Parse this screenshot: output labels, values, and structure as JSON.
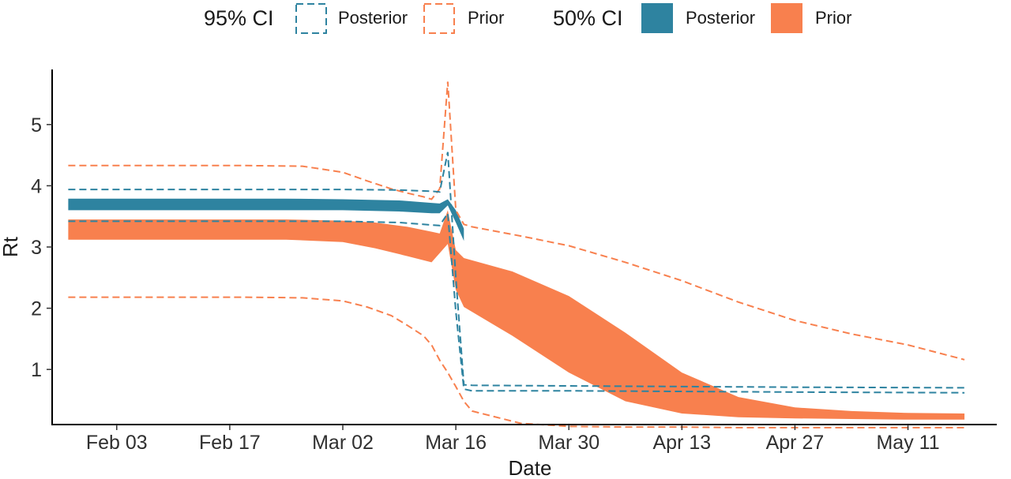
{
  "chart_data": {
    "type": "area",
    "xlabel": "Date",
    "ylabel": "Rt",
    "x_ticks": [
      "Feb 03",
      "Feb 17",
      "Mar 02",
      "Mar 16",
      "Mar 30",
      "Apr 13",
      "Apr 27",
      "May 11"
    ],
    "y_ticks": [
      1,
      2,
      3,
      4,
      5
    ],
    "xlim": [
      "2020-01-26",
      "2020-05-22"
    ],
    "ylim": [
      0.1,
      5.9
    ],
    "legend": {
      "position": "top",
      "groups": [
        {
          "title": "95% CI",
          "style": "dashed",
          "items": [
            "Posterior",
            "Prior"
          ]
        },
        {
          "title": "50% CI",
          "style": "filled",
          "items": [
            "Posterior",
            "Prior"
          ]
        }
      ]
    },
    "colors": {
      "posterior": "#2e83a0",
      "prior": "#f8804e"
    },
    "series": [
      {
        "name": "Prior",
        "interval": "95% CI",
        "style": "dashed",
        "x": [
          "2020-01-28",
          "2020-02-05",
          "2020-02-12",
          "2020-02-19",
          "2020-02-26",
          "2020-03-02",
          "2020-03-05",
          "2020-03-08",
          "2020-03-10",
          "2020-03-12",
          "2020-03-13",
          "2020-03-14",
          "2020-03-15",
          "2020-03-16",
          "2020-03-17",
          "2020-03-18",
          "2020-03-24",
          "2020-03-30",
          "2020-04-06",
          "2020-04-13",
          "2020-04-20",
          "2020-04-27",
          "2020-05-04",
          "2020-05-11",
          "2020-05-18"
        ],
        "lower": [
          2.18,
          2.18,
          2.18,
          2.18,
          2.17,
          2.12,
          2.02,
          1.88,
          1.72,
          1.55,
          1.4,
          1.15,
          0.95,
          0.72,
          0.48,
          0.32,
          0.12,
          0.07,
          0.06,
          0.06,
          0.05,
          0.05,
          0.05,
          0.05,
          0.05
        ],
        "upper": [
          4.33,
          4.33,
          4.33,
          4.33,
          4.32,
          4.22,
          4.08,
          3.95,
          3.88,
          3.82,
          3.78,
          3.95,
          5.7,
          3.6,
          3.37,
          3.33,
          3.18,
          3.02,
          2.75,
          2.45,
          2.1,
          1.8,
          1.58,
          1.4,
          1.16
        ]
      },
      {
        "name": "Posterior",
        "interval": "95% CI",
        "style": "dashed",
        "x": [
          "2020-01-28",
          "2020-02-10",
          "2020-02-24",
          "2020-03-02",
          "2020-03-09",
          "2020-03-13",
          "2020-03-14",
          "2020-03-15",
          "2020-03-16",
          "2020-03-17",
          "2020-03-18",
          "2020-03-31",
          "2020-04-14",
          "2020-04-28",
          "2020-05-18"
        ],
        "lower": [
          3.42,
          3.42,
          3.42,
          3.42,
          3.4,
          3.36,
          3.35,
          3.55,
          1.95,
          0.68,
          0.65,
          0.65,
          0.64,
          0.63,
          0.62
        ],
        "upper": [
          3.94,
          3.94,
          3.94,
          3.94,
          3.93,
          3.91,
          3.9,
          4.55,
          2.5,
          0.75,
          0.74,
          0.73,
          0.72,
          0.71,
          0.7
        ]
      },
      {
        "name": "Prior",
        "interval": "50% CI",
        "style": "filled",
        "x": [
          "2020-01-28",
          "2020-02-10",
          "2020-02-24",
          "2020-03-02",
          "2020-03-06",
          "2020-03-10",
          "2020-03-13",
          "2020-03-14",
          "2020-03-15",
          "2020-03-16",
          "2020-03-17",
          "2020-03-23",
          "2020-03-30",
          "2020-04-06",
          "2020-04-13",
          "2020-04-20",
          "2020-04-27",
          "2020-05-04",
          "2020-05-11",
          "2020-05-18"
        ],
        "lower": [
          3.12,
          3.12,
          3.12,
          3.08,
          2.98,
          2.85,
          2.75,
          2.9,
          3.05,
          2.3,
          2.02,
          1.55,
          0.95,
          0.48,
          0.28,
          0.22,
          0.2,
          0.19,
          0.18,
          0.18
        ],
        "upper": [
          3.45,
          3.45,
          3.45,
          3.43,
          3.4,
          3.33,
          3.25,
          3.22,
          3.6,
          2.95,
          2.82,
          2.6,
          2.2,
          1.6,
          0.95,
          0.55,
          0.38,
          0.32,
          0.29,
          0.28
        ]
      },
      {
        "name": "Posterior",
        "interval": "50% CI",
        "style": "filled",
        "x": [
          "2020-01-28",
          "2020-02-10",
          "2020-02-24",
          "2020-03-02",
          "2020-03-09",
          "2020-03-13",
          "2020-03-14",
          "2020-03-15",
          "2020-03-16",
          "2020-03-17"
        ],
        "lower": [
          3.6,
          3.6,
          3.6,
          3.6,
          3.58,
          3.55,
          3.55,
          3.68,
          3.4,
          3.1
        ],
        "upper": [
          3.79,
          3.79,
          3.79,
          3.78,
          3.76,
          3.72,
          3.71,
          3.78,
          3.6,
          3.3
        ]
      }
    ]
  }
}
